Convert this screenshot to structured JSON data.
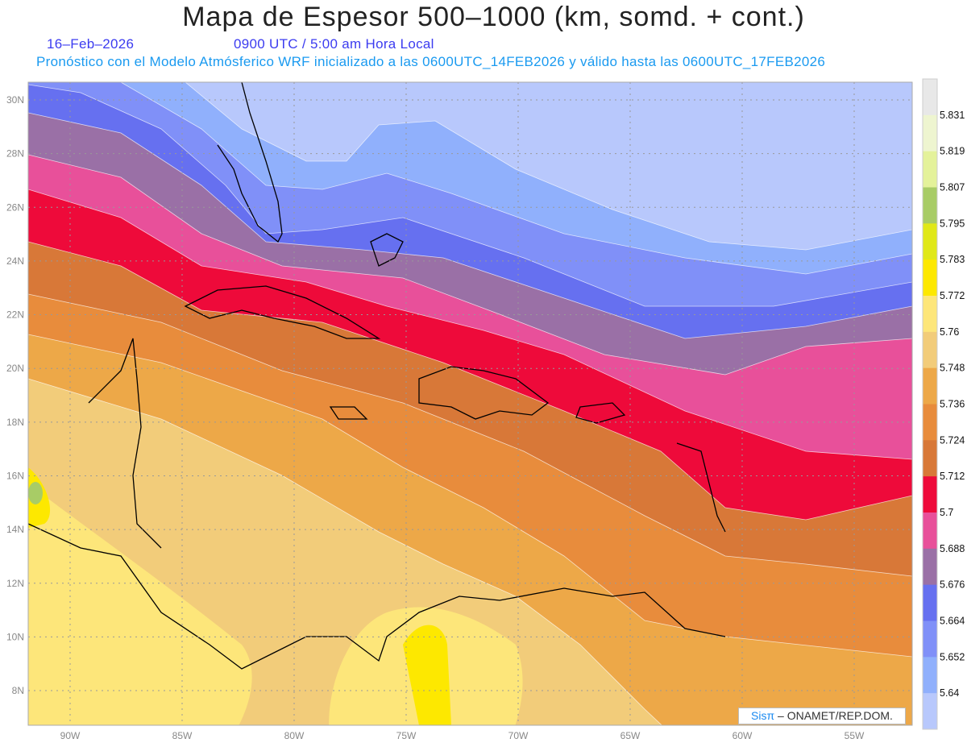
{
  "header": {
    "title": "Mapa de Espesor 500–1000 (km, somd. + cont.)",
    "date": "16–Feb–2026",
    "time": "0900 UTC / 5:00 am Hora Local",
    "info": "Pronóstico con el Modelo Atmósferico WRF inicializado a las 0600UTC_14FEB2026 y válido hasta las  0600UTC_17FEB2026"
  },
  "axes": {
    "lon_labels": [
      "90W",
      "85W",
      "80W",
      "75W",
      "70W",
      "65W",
      "60W",
      "55W"
    ],
    "lon_values": [
      -90,
      -85,
      -80,
      -75,
      -70,
      -65,
      -60,
      -55
    ],
    "lat_labels": [
      "30N",
      "28N",
      "26N",
      "24N",
      "22N",
      "20N",
      "18N",
      "16N",
      "14N",
      "12N",
      "10N",
      "8N"
    ],
    "lat_values": [
      30,
      28,
      26,
      24,
      22,
      20,
      18,
      16,
      14,
      12,
      10,
      8
    ]
  },
  "colorbar": {
    "labels": [
      "5.831",
      "5.819",
      "5.807",
      "5.795",
      "5.783",
      "5.772",
      "5.76",
      "5.748",
      "5.736",
      "5.724",
      "5.712",
      "5.7",
      "5.688",
      "5.676",
      "5.664",
      "5.652",
      "5.64"
    ],
    "colors": [
      "#e8e8e8",
      "#eef5d0",
      "#e4f29a",
      "#a8cc66",
      "#e0e818",
      "#fde800",
      "#fde67a",
      "#f2cc7a",
      "#eda848",
      "#e88c3c",
      "#d87838",
      "#ee0a3a",
      "#e8509a",
      "#9a70a6",
      "#6670f0",
      "#8090f8",
      "#90b0fc",
      "#b8c8fc"
    ]
  },
  "logo": {
    "brand": "Sisπ",
    "text": " – ONAMET/REP.DOM."
  }
}
